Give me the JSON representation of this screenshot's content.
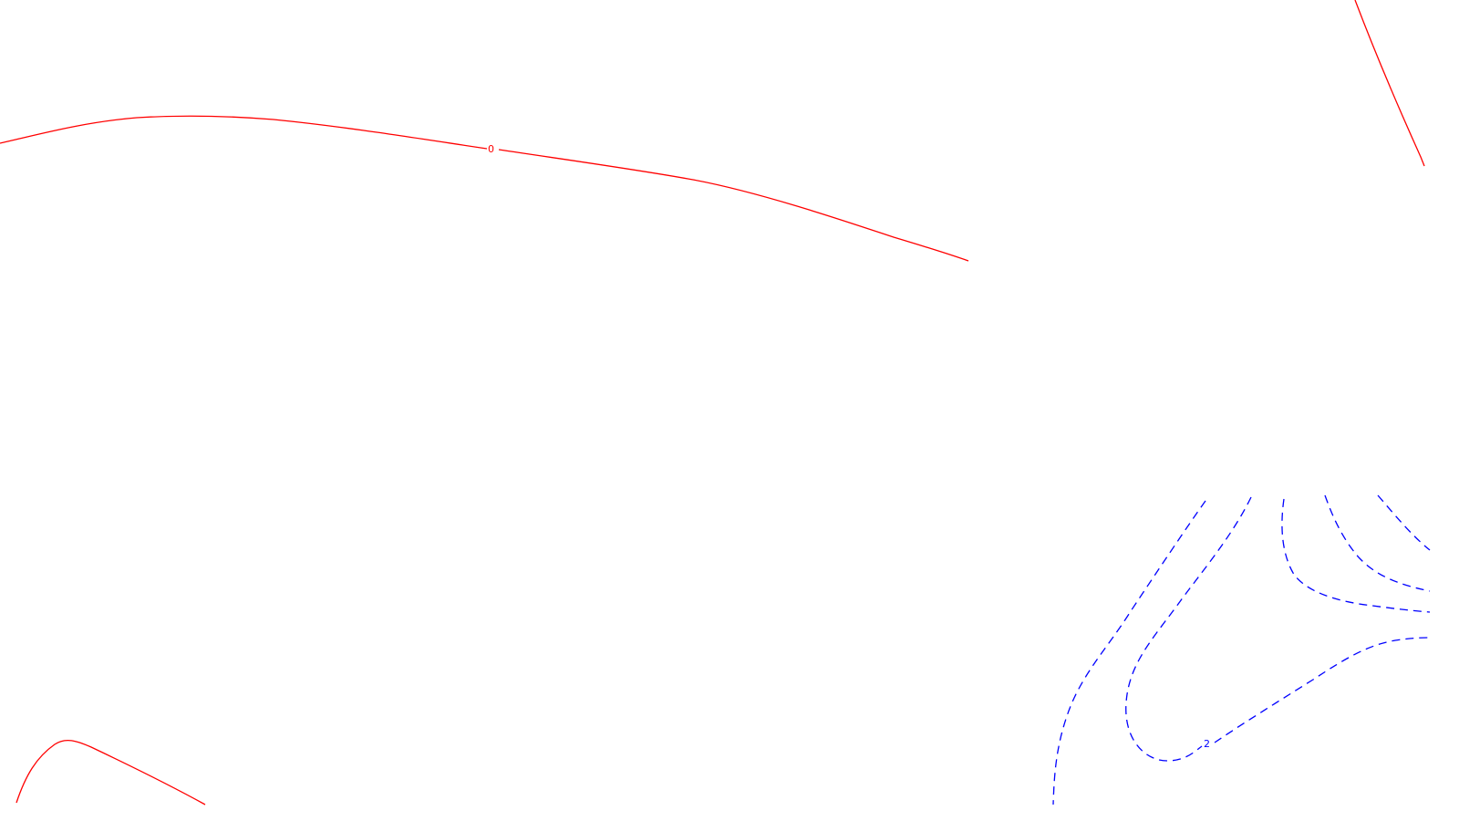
{
  "colors": {
    "background": "#ffffff",
    "positive_contour": "#ff0000",
    "negative_contour": "#0000ff"
  },
  "contours": {
    "zero_label": "0",
    "negative_label": "2"
  }
}
